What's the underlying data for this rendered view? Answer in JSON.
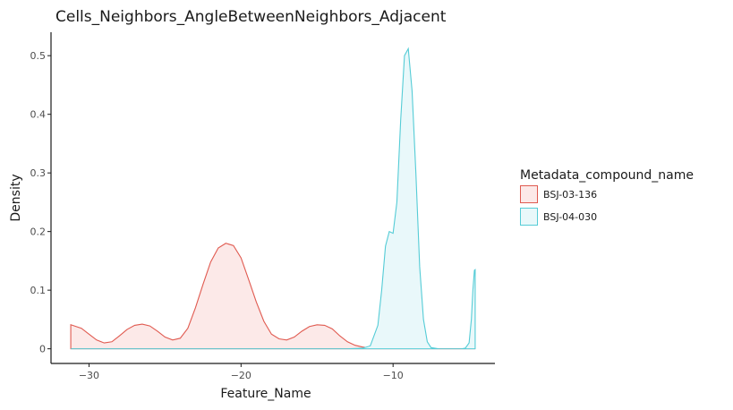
{
  "chart_data": {
    "type": "area",
    "title": "Cells_Neighbors_AngleBetweenNeighbors_Adjacent",
    "xlabel": "Feature_Name",
    "ylabel": "Density",
    "xlim": [
      -32.5,
      -3.3
    ],
    "ylim": [
      -0.025,
      0.54
    ],
    "x_ticks": [
      -30,
      -20,
      -10
    ],
    "x_tick_labels": [
      "−30",
      "−20",
      "−10"
    ],
    "y_ticks": [
      0,
      0.1,
      0.2,
      0.3,
      0.4,
      0.5
    ],
    "y_tick_labels": [
      "0",
      "0.1",
      "0.2",
      "0.3",
      "0.4",
      "0.5"
    ],
    "grid": false,
    "legend": {
      "title": "Metadata_compound_name",
      "placement": "right"
    },
    "series": [
      {
        "name": "BSJ-03-136",
        "line_color": "#e05a50",
        "fill_color": "#fce9e8",
        "x": [
          -31.2,
          -30.5,
          -30,
          -29.5,
          -29,
          -28.5,
          -28,
          -27.5,
          -27,
          -26.5,
          -26,
          -25.5,
          -25,
          -24.5,
          -24,
          -23.5,
          -23,
          -22.5,
          -22,
          -21.5,
          -21,
          -20.5,
          -20,
          -19.5,
          -19,
          -18.5,
          -18,
          -17.5,
          -17,
          -16.5,
          -16,
          -15.5,
          -15,
          -14.5,
          -14,
          -13.5,
          -13,
          -12.5,
          -12,
          -11.5,
          -11,
          -10.5,
          -10,
          -9.5,
          -9,
          -8.5,
          -8,
          -7.5,
          -7,
          -6.5,
          -6,
          -5.5,
          -5,
          -4.6
        ],
        "y": [
          0.041,
          0.035,
          0.025,
          0.015,
          0.01,
          0.012,
          0.022,
          0.033,
          0.04,
          0.042,
          0.039,
          0.03,
          0.02,
          0.015,
          0.018,
          0.035,
          0.07,
          0.11,
          0.148,
          0.172,
          0.18,
          0.176,
          0.155,
          0.118,
          0.08,
          0.047,
          0.025,
          0.017,
          0.015,
          0.02,
          0.03,
          0.038,
          0.041,
          0.04,
          0.034,
          0.022,
          0.012,
          0.006,
          0.003,
          0.001,
          0.0,
          0.0,
          0.0,
          0.0,
          0.0,
          0.0,
          0.0,
          0.0,
          0.0,
          0.0,
          0.0,
          0.0,
          0.0,
          0.0
        ]
      },
      {
        "name": "BSJ-04-030",
        "line_color": "#55ccd6",
        "fill_color": "#e9f8fa",
        "x": [
          -31.2,
          -13,
          -12,
          -11.5,
          -11,
          -10.75,
          -10.5,
          -10.25,
          -10,
          -9.75,
          -9.5,
          -9.25,
          -9,
          -8.75,
          -8.5,
          -8.25,
          -8,
          -7.75,
          -7.5,
          -7,
          -6.5,
          -6,
          -5.5,
          -5.25,
          -5,
          -4.85,
          -4.75,
          -4.65,
          -4.6
        ],
        "y": [
          0.0,
          0.0,
          0.001,
          0.005,
          0.04,
          0.1,
          0.175,
          0.2,
          0.197,
          0.25,
          0.39,
          0.5,
          0.512,
          0.44,
          0.3,
          0.14,
          0.05,
          0.012,
          0.002,
          0.0,
          0.0,
          0.0,
          0.0,
          0.001,
          0.01,
          0.05,
          0.1,
          0.134,
          0.135
        ]
      }
    ]
  }
}
